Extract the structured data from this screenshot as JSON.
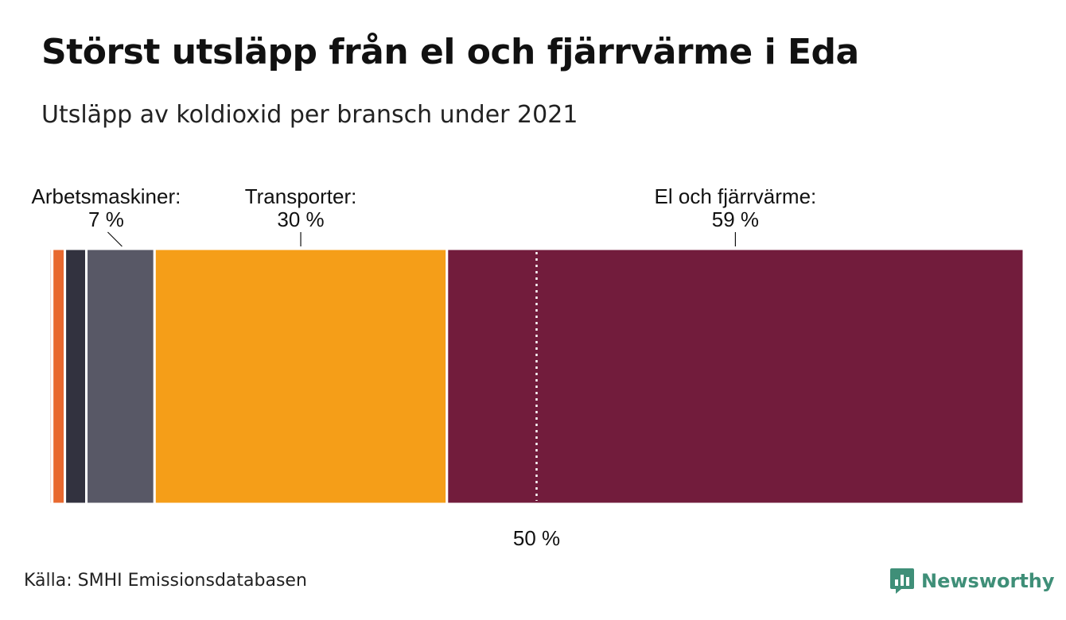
{
  "title": "Störst utsläpp från el och fjärrvärme i Eda",
  "subtitle": "Utsläpp av koldioxid per bransch under 2021",
  "source": "Källa: SMHI Emissionsdatabasen",
  "brand": {
    "name": "Newsworthy",
    "icon": "newsworthy-logo-icon",
    "color": "#3f8f78"
  },
  "chart_data": {
    "type": "bar",
    "orientation": "stacked-100-percent-horizontal",
    "unit": "%",
    "segments": [
      {
        "value": 0.3,
        "color": "#e9b4a6"
      },
      {
        "value": 1.3,
        "color": "#e8692f"
      },
      {
        "value": 2.2,
        "color": "#32323f"
      },
      {
        "value": 7,
        "color": "#585866",
        "label": "Arbetsmaskiner:",
        "value_label": "7 %"
      },
      {
        "value": 30,
        "color": "#f59e18",
        "label": "Transporter:",
        "value_label": "30 %"
      },
      {
        "value": 59.2,
        "color": "#721c3c",
        "label": "El och fjärrvärme:",
        "value_label": "59 %"
      }
    ],
    "reference_line": {
      "value": 50,
      "label": "50 %",
      "style": "dotted",
      "color": "#ffffff"
    },
    "xlim": [
      0,
      100
    ],
    "grid": false,
    "legend": "none"
  }
}
